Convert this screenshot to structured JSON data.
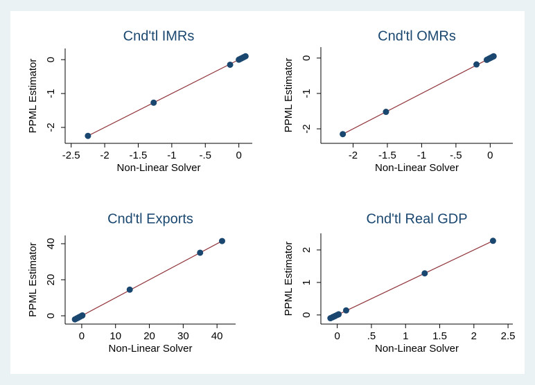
{
  "chart_data": [
    {
      "type": "scatter",
      "title": "Cnd'tl IMRs",
      "xlabel": "Non-Linear Solver",
      "ylabel": "PPML Estimator",
      "xlim": [
        -2.59,
        0.2
      ],
      "ylim": [
        -2.47,
        0.33
      ],
      "xticks": [
        -2.5,
        -2,
        -1.5,
        -1,
        {
          "value": -0.5,
          "label": "-.5"
        },
        0
      ],
      "yticks": [
        -2,
        -1,
        0
      ],
      "points": {
        "color": "#1a476f",
        "x": [
          -2.25,
          -1.27,
          -0.13,
          0,
          0.02,
          0.04,
          0.06,
          0.08,
          0.1
        ],
        "y": [
          -2.25,
          -1.27,
          -0.15,
          0,
          0.02,
          0.04,
          0.06,
          0.08,
          0.1
        ]
      },
      "line": {
        "color": "#90353b",
        "x": [
          -2.25,
          0.1
        ],
        "y": [
          -2.25,
          0.1
        ]
      }
    },
    {
      "type": "scatter",
      "title": "Cnd'tl OMRs",
      "xlabel": "Non-Linear Solver",
      "ylabel": "PPML Estimator",
      "xlim": [
        -2.47,
        0.33
      ],
      "ylim": [
        -2.41,
        0.31
      ],
      "xticks": [
        -2,
        -1.5,
        -1,
        {
          "value": -0.5,
          "label": "-.5"
        },
        0
      ],
      "yticks": [
        -2,
        -1,
        0
      ],
      "points": {
        "color": "#1a476f",
        "x": [
          -2.15,
          -1.52,
          -0.2,
          -0.05,
          -0.02,
          0,
          0.02,
          0.04,
          0.05
        ],
        "y": [
          -2.15,
          -1.52,
          -0.18,
          -0.05,
          -0.02,
          0,
          0.02,
          0.04,
          0.05
        ]
      },
      "line": {
        "color": "#90353b",
        "x": [
          -2.15,
          0.05
        ],
        "y": [
          -2.15,
          0.05
        ]
      }
    },
    {
      "type": "scatter",
      "title": "Cnd'tl Exports",
      "xlabel": "Non-Linear Solver",
      "ylabel": "PPML Estimator",
      "xlim": [
        -4.9,
        45.5
      ],
      "ylim": [
        -4.6,
        44.6
      ],
      "xticks": [
        0,
        10,
        20,
        30,
        40
      ],
      "yticks": [
        0,
        20,
        40
      ],
      "points": {
        "color": "#1a476f",
        "x": [
          -2,
          -1.5,
          -1,
          -0.5,
          0,
          0.2,
          14.2,
          35,
          41.5
        ],
        "y": [
          -2,
          -1.5,
          -1,
          -0.5,
          0,
          0.2,
          14.5,
          35,
          41.5
        ]
      },
      "line": {
        "color": "#90353b",
        "x": [
          -2,
          41.5
        ],
        "y": [
          -2,
          41.5
        ]
      }
    },
    {
      "type": "scatter",
      "title": "Cnd'tl Real GDP",
      "xlabel": "Non-Linear Solver",
      "ylabel": "PPML Estimator",
      "xlim": [
        -0.24,
        2.57
      ],
      "ylim": [
        -0.28,
        2.51
      ],
      "xticks": [
        0,
        {
          "value": 0.5,
          "label": ".5"
        },
        1,
        1.5,
        2,
        2.5
      ],
      "yticks": [
        0,
        1,
        2
      ],
      "points": {
        "color": "#1a476f",
        "x": [
          -0.1,
          -0.07,
          -0.05,
          -0.03,
          0,
          0.02,
          0.13,
          1.28,
          2.28
        ],
        "y": [
          -0.1,
          -0.07,
          -0.05,
          -0.03,
          0,
          0.02,
          0.14,
          1.28,
          2.28
        ]
      },
      "line": {
        "color": "#90353b",
        "x": [
          -0.1,
          2.28
        ],
        "y": [
          -0.1,
          2.28
        ]
      }
    }
  ]
}
